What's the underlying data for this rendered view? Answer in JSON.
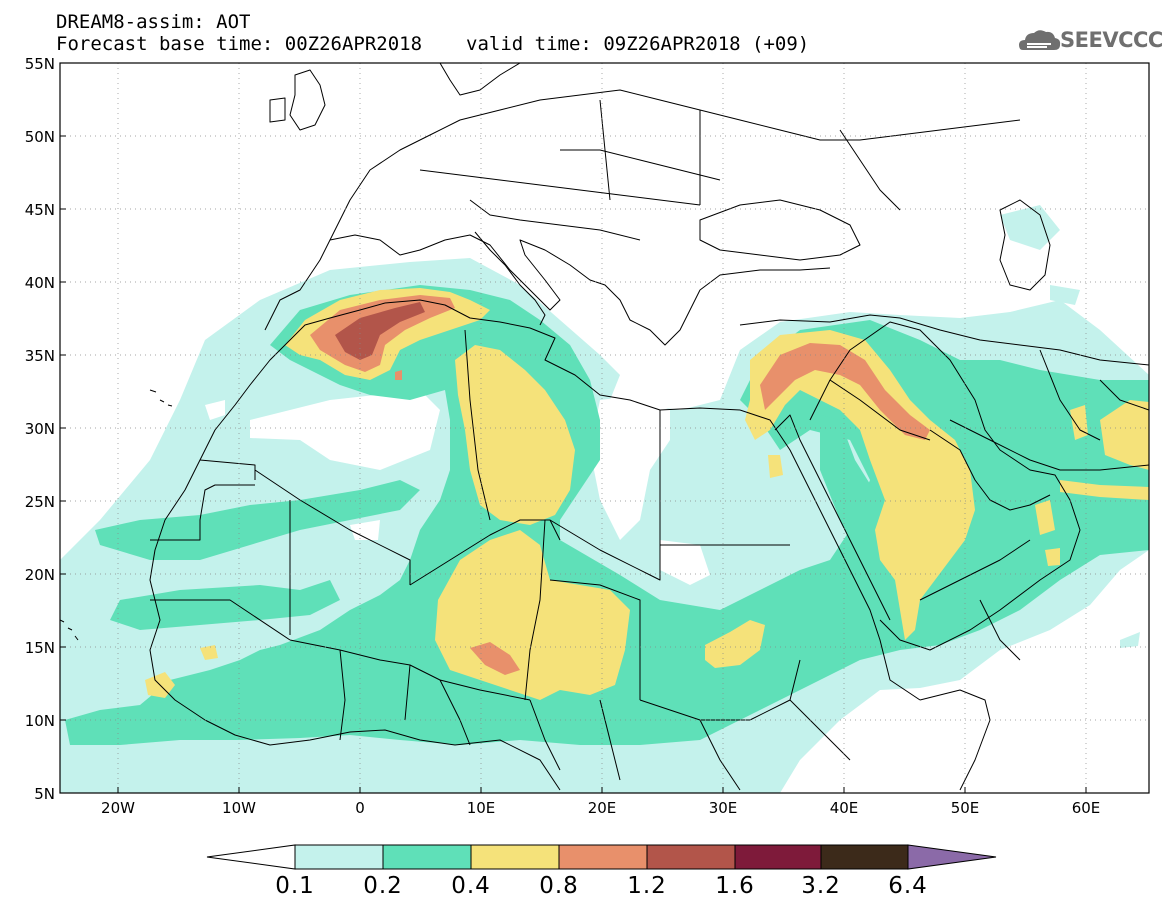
{
  "header": {
    "title": "DREAM8-assim: AOT",
    "base_time": "Forecast base time: 00Z26APR2018",
    "valid_time": "valid time: 09Z26APR2018 (+09)"
  },
  "logo": {
    "text": "SEEVCCC",
    "icon": "cloud-icon"
  },
  "axes": {
    "lat_labels": [
      "55N",
      "50N",
      "45N",
      "40N",
      "35N",
      "30N",
      "25N",
      "20N",
      "15N",
      "10N",
      "5N"
    ],
    "lon_labels": [
      "20W",
      "10W",
      "0",
      "10E",
      "20E",
      "30E",
      "40E",
      "50E",
      "60E"
    ]
  },
  "colorbar": {
    "labels": [
      "0.1",
      "0.2",
      "0.4",
      "0.8",
      "1.2",
      "1.6",
      "3.2",
      "6.4"
    ],
    "colors": [
      "#ffffff",
      "#c4f2ec",
      "#5fe0b8",
      "#f5e27a",
      "#e8906b",
      "#b2554a",
      "#7e1a3a",
      "#3c2a1a",
      "#8b6aa8"
    ]
  },
  "colors": {
    "lt": "#c4f2ec",
    "md": "#5fe0b8",
    "yl": "#f5e27a",
    "or": "#e8906b",
    "rd": "#b2554a"
  }
}
